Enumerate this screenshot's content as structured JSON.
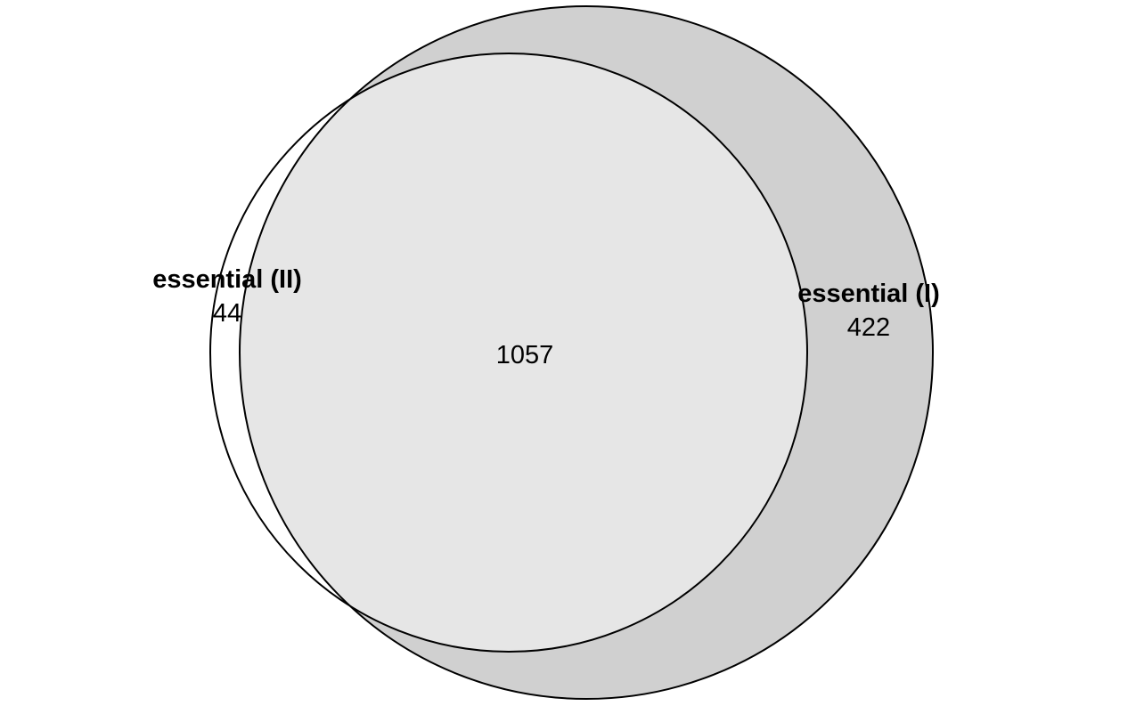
{
  "diagram": {
    "type": "venn",
    "sets": [
      {
        "id": "set-I",
        "label": "essential (I)",
        "only_count": "422",
        "fill_color": "#d0d0d0"
      },
      {
        "id": "set-II",
        "label": "essential (II)",
        "only_count": "44",
        "fill_color": "#ffffff"
      }
    ],
    "intersection": {
      "count": "1057",
      "fill_color": "#e6e6e6"
    },
    "stroke_color": "#000000",
    "background_color": "#ffffff"
  }
}
